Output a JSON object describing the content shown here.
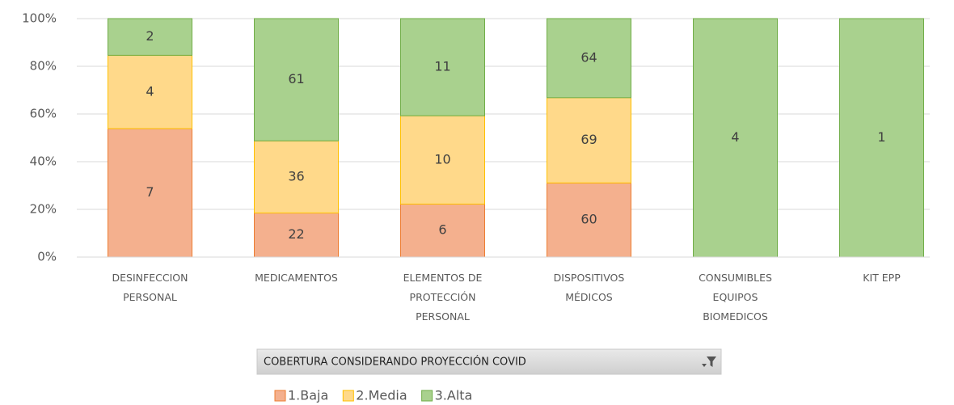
{
  "chart_data": {
    "type": "bar",
    "stacking": "percent",
    "categories": [
      "DESINFECCION\nPERSONAL",
      "MEDICAMENTOS",
      "ELEMENTOS DE\nPROTECCIÓN\nPERSONAL",
      "DISPOSITIVOS\nMÉDICOS",
      "CONSUMIBLES\nEQUIPOS\nBIOMEDICOS",
      "KIT EPP"
    ],
    "series": [
      {
        "name": "1.Baja",
        "color": "#f4b08e",
        "edge_color": "#ed7d31",
        "values": [
          7,
          22,
          6,
          60,
          null,
          null
        ]
      },
      {
        "name": "2.Media",
        "color": "#ffd98a",
        "edge_color": "#ffc000",
        "values": [
          4,
          36,
          10,
          69,
          null,
          null
        ]
      },
      {
        "name": "3.Alta",
        "color": "#a9d18e",
        "edge_color": "#70ad47",
        "values": [
          2,
          61,
          11,
          64,
          4,
          1
        ]
      }
    ],
    "ylim": [
      0,
      100
    ],
    "yticks": [
      {
        "value": 0,
        "label": "0%"
      },
      {
        "value": 20,
        "label": "20%"
      },
      {
        "value": 40,
        "label": "40%"
      },
      {
        "value": 60,
        "label": "60%"
      },
      {
        "value": 80,
        "label": "80%"
      },
      {
        "value": 100,
        "label": "100%"
      }
    ],
    "grid": true,
    "field_button": "COBERTURA  CONSIDERANDO  PROYECCIÓN COVID",
    "legend": "bottom"
  }
}
